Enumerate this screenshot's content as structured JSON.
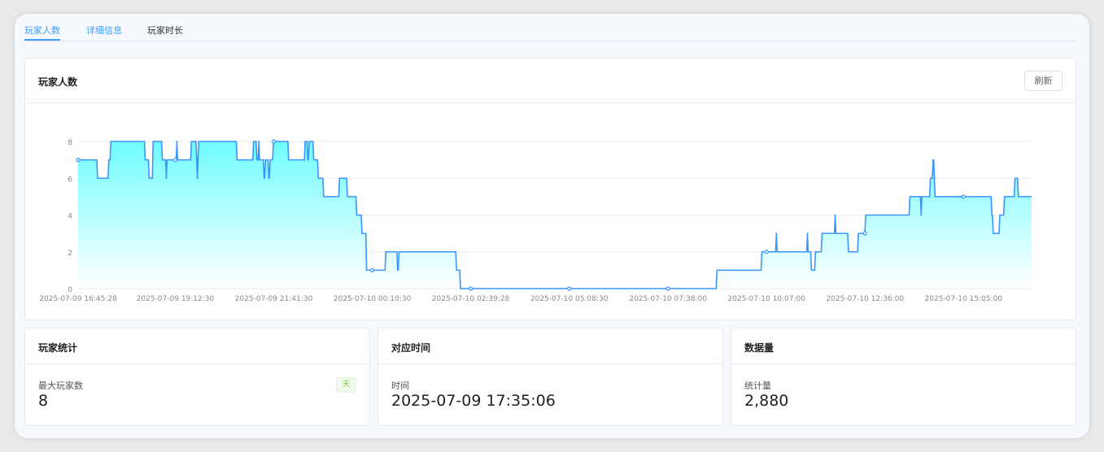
{
  "tabs": [
    {
      "label": "玩家人数",
      "active": true
    },
    {
      "label": "详细信息"
    },
    {
      "label": "玩家时长"
    }
  ],
  "chart_card": {
    "title": "玩家人数",
    "refresh_label": "刷新"
  },
  "stats": [
    {
      "title": "玩家统计",
      "label": "最大玩家数",
      "value": "8",
      "tag": "天"
    },
    {
      "title": "对应时间",
      "label": "时间",
      "value": "2025-07-09 17:35:06"
    },
    {
      "title": "数据量",
      "label": "统计量",
      "value": "2,880"
    }
  ],
  "colors": {
    "accent": "#409eff",
    "line": "#3a95ff",
    "area_top": "#6ffcff",
    "area_bottom": "#ffffff",
    "tag_green": "#67c23a"
  },
  "chart_data": {
    "type": "area",
    "step": true,
    "xlim": [
      "2025-07-09 16:45:28",
      "2025-07-10 16:48:00"
    ],
    "ylim": [
      0,
      8
    ],
    "yticks": [
      0,
      2,
      4,
      6,
      8
    ],
    "xticks": [
      "2025-07-09 16:45:28",
      "2025-07-09 19:12:30",
      "2025-07-09 21:41:30",
      "2025-07-10 00:10:30",
      "2025-07-10 02:39:28",
      "2025-07-10 05:08:30",
      "2025-07-10 07:38:00",
      "2025-07-10 10:07:00",
      "2025-07-10 12:36:00",
      "2025-07-10 15:05:00"
    ],
    "grid": true,
    "points": [
      [
        "2025-07-09 16:45",
        7
      ],
      [
        "2025-07-09 17:15",
        6
      ],
      [
        "2025-07-09 17:32",
        7
      ],
      [
        "2025-07-09 17:35",
        8
      ],
      [
        "2025-07-09 18:27",
        7
      ],
      [
        "2025-07-09 18:33",
        6
      ],
      [
        "2025-07-09 18:39",
        8
      ],
      [
        "2025-07-09 18:53",
        7
      ],
      [
        "2025-07-09 18:59",
        6
      ],
      [
        "2025-07-09 19:00",
        7
      ],
      [
        "2025-07-09 19:15",
        8
      ],
      [
        "2025-07-09 19:16",
        7
      ],
      [
        "2025-07-09 19:37",
        8
      ],
      [
        "2025-07-09 19:45",
        7
      ],
      [
        "2025-07-09 19:46",
        6
      ],
      [
        "2025-07-09 19:47",
        7
      ],
      [
        "2025-07-09 19:48",
        8
      ],
      [
        "2025-07-09 20:46",
        7
      ],
      [
        "2025-07-09 21:11",
        8
      ],
      [
        "2025-07-09 21:16",
        7
      ],
      [
        "2025-07-09 21:19",
        8
      ],
      [
        "2025-07-09 21:20",
        7
      ],
      [
        "2025-07-09 21:27",
        6
      ],
      [
        "2025-07-09 21:29",
        7
      ],
      [
        "2025-07-09 21:34",
        6
      ],
      [
        "2025-07-09 21:36",
        7
      ],
      [
        "2025-07-09 21:41",
        8
      ],
      [
        "2025-07-09 22:04",
        7
      ],
      [
        "2025-07-09 22:29",
        8
      ],
      [
        "2025-07-09 22:33",
        7
      ],
      [
        "2025-07-09 22:35",
        8
      ],
      [
        "2025-07-09 22:42",
        7
      ],
      [
        "2025-07-09 22:49",
        6
      ],
      [
        "2025-07-09 22:57",
        5
      ],
      [
        "2025-07-09 23:21",
        6
      ],
      [
        "2025-07-09 23:33",
        5
      ],
      [
        "2025-07-09 23:47",
        4
      ],
      [
        "2025-07-09 23:55",
        3
      ],
      [
        "2025-07-10 00:02",
        1
      ],
      [
        "2025-07-10 00:31",
        2
      ],
      [
        "2025-07-10 00:49",
        1
      ],
      [
        "2025-07-10 00:51",
        2
      ],
      [
        "2025-07-10 02:18",
        1
      ],
      [
        "2025-07-10 02:24",
        0
      ],
      [
        "2025-07-10 08:52",
        1
      ],
      [
        "2025-07-10 10:00",
        2
      ],
      [
        "2025-07-10 10:22",
        3
      ],
      [
        "2025-07-10 10:23",
        2
      ],
      [
        "2025-07-10 11:09",
        3
      ],
      [
        "2025-07-10 11:10",
        2
      ],
      [
        "2025-07-10 11:15",
        1
      ],
      [
        "2025-07-10 11:21",
        2
      ],
      [
        "2025-07-10 11:31",
        3
      ],
      [
        "2025-07-10 11:51",
        4
      ],
      [
        "2025-07-10 11:52",
        3
      ],
      [
        "2025-07-10 12:11",
        2
      ],
      [
        "2025-07-10 12:26",
        3
      ],
      [
        "2025-07-10 12:37",
        4
      ],
      [
        "2025-07-10 13:44",
        5
      ],
      [
        "2025-07-10 14:01",
        4
      ],
      [
        "2025-07-10 14:02",
        5
      ],
      [
        "2025-07-10 14:15",
        6
      ],
      [
        "2025-07-10 14:19",
        7
      ],
      [
        "2025-07-10 14:21",
        6
      ],
      [
        "2025-07-10 14:22",
        5
      ],
      [
        "2025-07-10 15:48",
        4
      ],
      [
        "2025-07-10 15:50",
        3
      ],
      [
        "2025-07-10 16:00",
        4
      ],
      [
        "2025-07-10 16:07",
        5
      ],
      [
        "2025-07-10 16:23",
        6
      ],
      [
        "2025-07-10 16:28",
        5
      ],
      [
        "2025-07-10 16:48",
        5
      ]
    ]
  }
}
